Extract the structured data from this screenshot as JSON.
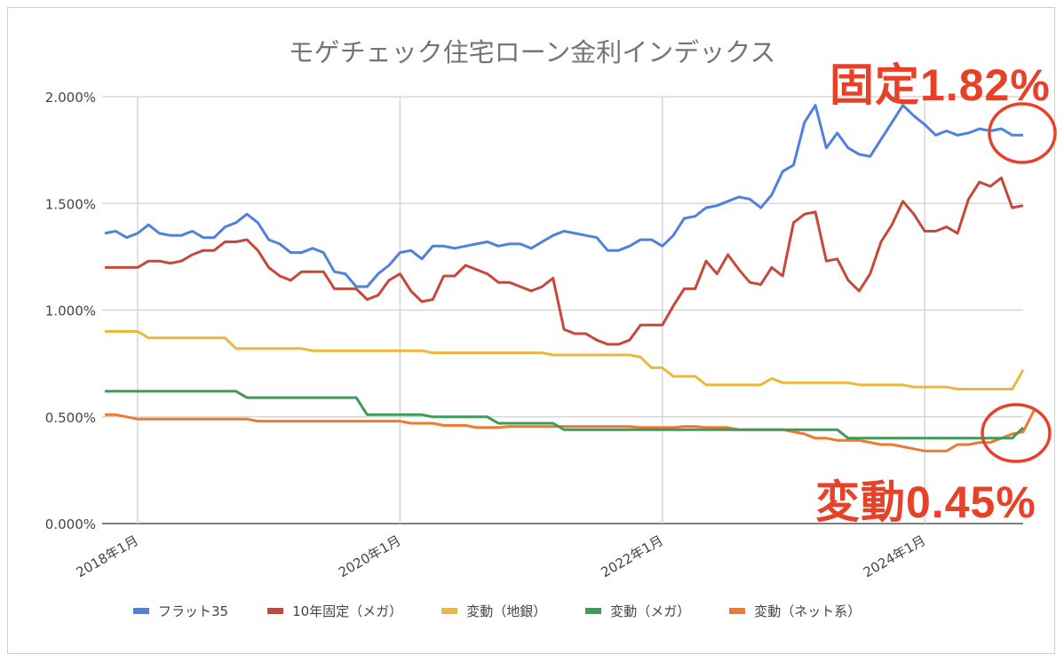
{
  "chart_data": {
    "type": "line",
    "title": "モゲチェック住宅ローン金利インデックス",
    "xlabel": "",
    "ylabel": "",
    "x_start": "2017年10月",
    "x_end": "2024年10月",
    "x_step": "monthly",
    "ylim": [
      0,
      2.0
    ],
    "yticks": [
      "0.000%",
      "0.500%",
      "1.000%",
      "1.500%",
      "2.000%"
    ],
    "xticks": [
      "2018年1月",
      "2020年1月",
      "2022年1月",
      "2024年1月"
    ],
    "xtick_index": [
      3,
      27,
      51,
      75
    ],
    "grid": true,
    "legend_position": "bottom",
    "series": [
      {
        "name": "フラット35",
        "color": "#4f81dd",
        "values": [
          1.36,
          1.37,
          1.34,
          1.36,
          1.4,
          1.36,
          1.35,
          1.35,
          1.37,
          1.34,
          1.34,
          1.39,
          1.41,
          1.45,
          1.41,
          1.33,
          1.31,
          1.27,
          1.27,
          1.29,
          1.27,
          1.18,
          1.17,
          1.11,
          1.11,
          1.17,
          1.21,
          1.27,
          1.28,
          1.24,
          1.3,
          1.3,
          1.29,
          1.3,
          1.31,
          1.32,
          1.3,
          1.31,
          1.31,
          1.29,
          1.32,
          1.35,
          1.37,
          1.36,
          1.35,
          1.34,
          1.28,
          1.28,
          1.3,
          1.33,
          1.33,
          1.3,
          1.35,
          1.43,
          1.44,
          1.48,
          1.49,
          1.51,
          1.53,
          1.52,
          1.48,
          1.54,
          1.65,
          1.68,
          1.88,
          1.96,
          1.76,
          1.83,
          1.76,
          1.73,
          1.72,
          1.8,
          1.88,
          1.96,
          1.91,
          1.87,
          1.82,
          1.84,
          1.82,
          1.83,
          1.85,
          1.84,
          1.85,
          1.82,
          1.82
        ]
      },
      {
        "name": "10年固定（メガ）",
        "color": "#c5493a",
        "values": [
          1.2,
          1.2,
          1.2,
          1.2,
          1.23,
          1.23,
          1.22,
          1.23,
          1.26,
          1.28,
          1.28,
          1.32,
          1.32,
          1.33,
          1.28,
          1.2,
          1.16,
          1.14,
          1.18,
          1.18,
          1.18,
          1.1,
          1.1,
          1.1,
          1.05,
          1.07,
          1.14,
          1.17,
          1.09,
          1.04,
          1.05,
          1.16,
          1.16,
          1.21,
          1.19,
          1.17,
          1.13,
          1.13,
          1.11,
          1.09,
          1.11,
          1.15,
          0.91,
          0.89,
          0.89,
          0.86,
          0.84,
          0.84,
          0.86,
          0.93,
          0.93,
          0.93,
          1.02,
          1.1,
          1.1,
          1.23,
          1.17,
          1.26,
          1.19,
          1.13,
          1.12,
          1.2,
          1.16,
          1.41,
          1.45,
          1.46,
          1.23,
          1.24,
          1.14,
          1.09,
          1.17,
          1.32,
          1.4,
          1.51,
          1.45,
          1.37,
          1.37,
          1.39,
          1.36,
          1.52,
          1.6,
          1.58,
          1.62,
          1.48,
          1.49
        ]
      },
      {
        "name": "変動（地銀）",
        "color": "#ebb73c",
        "values": [
          0.9,
          0.9,
          0.9,
          0.9,
          0.87,
          0.87,
          0.87,
          0.87,
          0.87,
          0.87,
          0.87,
          0.87,
          0.82,
          0.82,
          0.82,
          0.82,
          0.82,
          0.82,
          0.82,
          0.81,
          0.81,
          0.81,
          0.81,
          0.81,
          0.81,
          0.81,
          0.81,
          0.81,
          0.81,
          0.81,
          0.8,
          0.8,
          0.8,
          0.8,
          0.8,
          0.8,
          0.8,
          0.8,
          0.8,
          0.8,
          0.8,
          0.79,
          0.79,
          0.79,
          0.79,
          0.79,
          0.79,
          0.79,
          0.79,
          0.78,
          0.73,
          0.73,
          0.69,
          0.69,
          0.69,
          0.65,
          0.65,
          0.65,
          0.65,
          0.65,
          0.65,
          0.68,
          0.66,
          0.66,
          0.66,
          0.66,
          0.66,
          0.66,
          0.66,
          0.65,
          0.65,
          0.65,
          0.65,
          0.65,
          0.64,
          0.64,
          0.64,
          0.64,
          0.63,
          0.63,
          0.63,
          0.63,
          0.63,
          0.63,
          0.72
        ]
      },
      {
        "name": "変動（メガ）",
        "color": "#3f9a5c",
        "values": [
          0.62,
          0.62,
          0.62,
          0.62,
          0.62,
          0.62,
          0.62,
          0.62,
          0.62,
          0.62,
          0.62,
          0.62,
          0.62,
          0.59,
          0.59,
          0.59,
          0.59,
          0.59,
          0.59,
          0.59,
          0.59,
          0.59,
          0.59,
          0.59,
          0.51,
          0.51,
          0.51,
          0.51,
          0.51,
          0.51,
          0.5,
          0.5,
          0.5,
          0.5,
          0.5,
          0.5,
          0.47,
          0.47,
          0.47,
          0.47,
          0.47,
          0.47,
          0.44,
          0.44,
          0.44,
          0.44,
          0.44,
          0.44,
          0.44,
          0.44,
          0.44,
          0.44,
          0.44,
          0.44,
          0.44,
          0.44,
          0.44,
          0.44,
          0.44,
          0.44,
          0.44,
          0.44,
          0.44,
          0.44,
          0.44,
          0.44,
          0.44,
          0.44,
          0.4,
          0.4,
          0.4,
          0.4,
          0.4,
          0.4,
          0.4,
          0.4,
          0.4,
          0.4,
          0.4,
          0.4,
          0.4,
          0.4,
          0.4,
          0.4,
          0.45
        ]
      },
      {
        "name": "変動（ネット系）",
        "color": "#ec7a31",
        "values": [
          0.51,
          0.51,
          0.5,
          0.49,
          0.49,
          0.49,
          0.49,
          0.49,
          0.49,
          0.49,
          0.49,
          0.49,
          0.49,
          0.49,
          0.48,
          0.48,
          0.48,
          0.48,
          0.48,
          0.48,
          0.48,
          0.48,
          0.48,
          0.48,
          0.48,
          0.48,
          0.48,
          0.48,
          0.47,
          0.47,
          0.47,
          0.46,
          0.46,
          0.46,
          0.45,
          0.45,
          0.45,
          0.455,
          0.455,
          0.455,
          0.455,
          0.455,
          0.455,
          0.455,
          0.455,
          0.455,
          0.455,
          0.455,
          0.455,
          0.45,
          0.45,
          0.45,
          0.45,
          0.455,
          0.455,
          0.45,
          0.45,
          0.45,
          0.44,
          0.44,
          0.44,
          0.44,
          0.44,
          0.43,
          0.42,
          0.4,
          0.4,
          0.39,
          0.39,
          0.39,
          0.38,
          0.37,
          0.37,
          0.36,
          0.35,
          0.34,
          0.34,
          0.34,
          0.37,
          0.37,
          0.38,
          0.38,
          0.4,
          0.42,
          0.43,
          0.53
        ]
      }
    ]
  },
  "annotations": {
    "fixed": "固定1.82%",
    "variable": "変動0.45%",
    "color": "#e8412a"
  }
}
